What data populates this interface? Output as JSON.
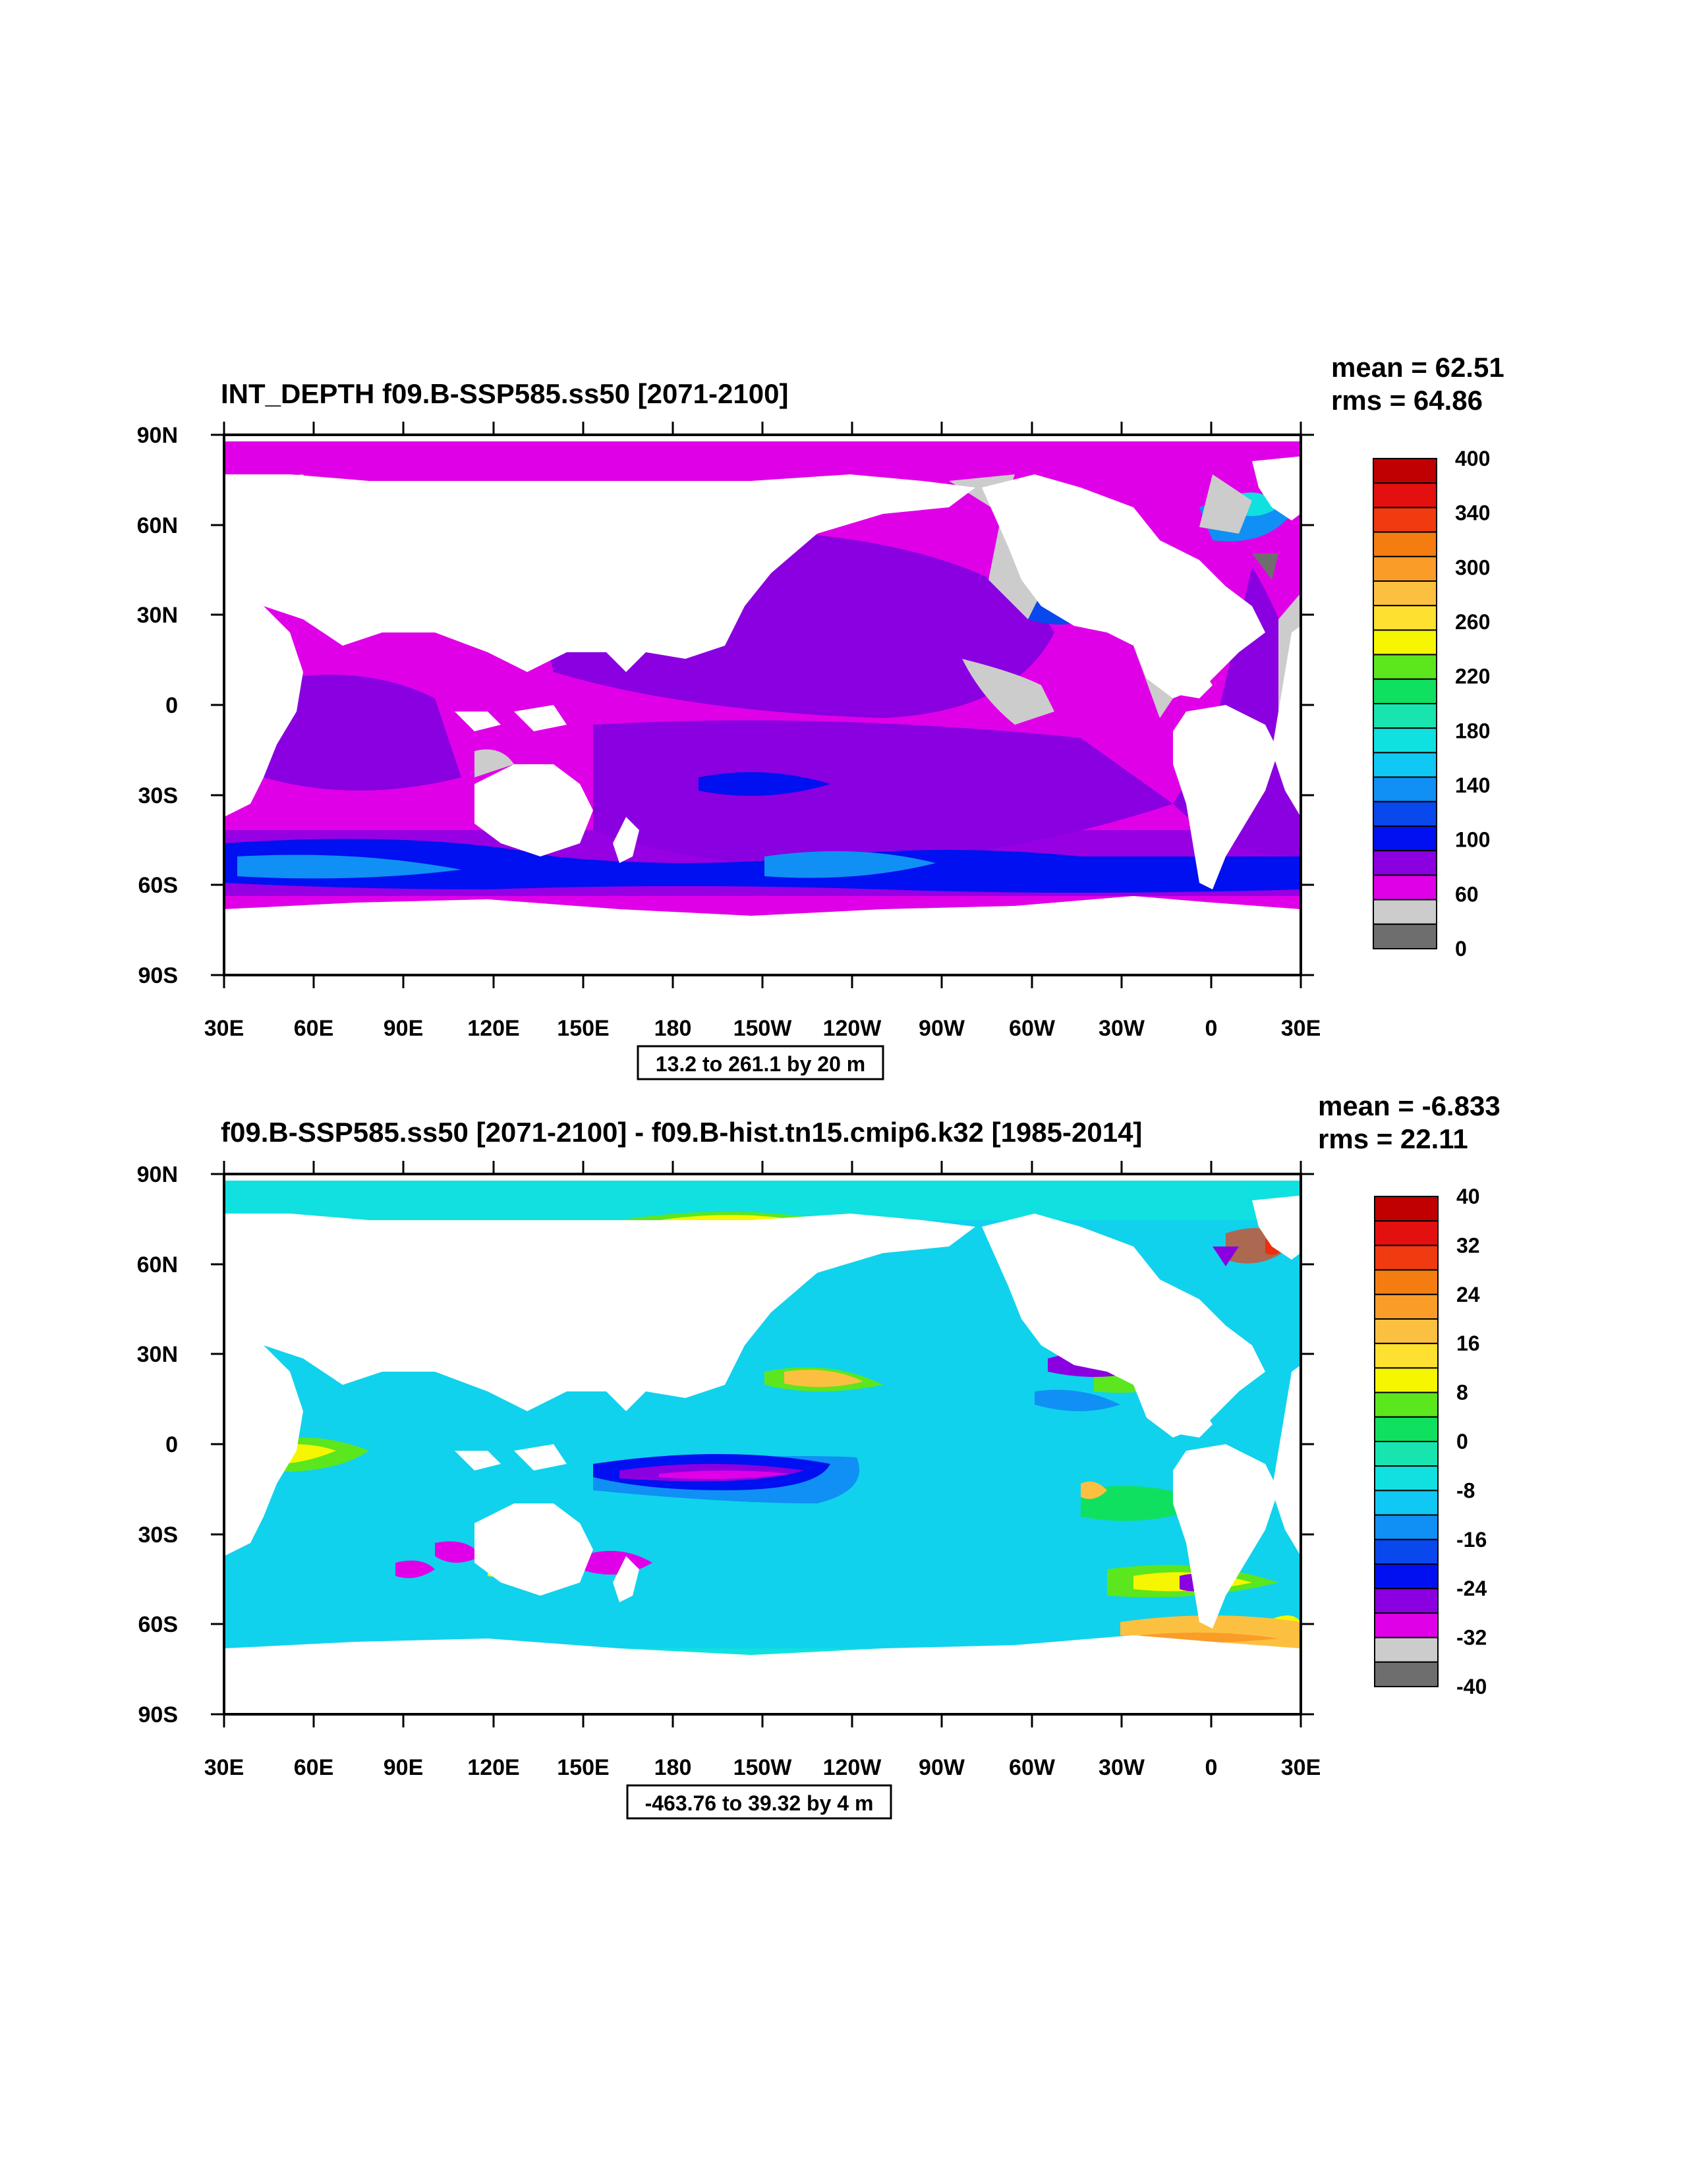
{
  "panels": [
    {
      "title": "INT_DEPTH f09.B-SSP585.ss50 [2071-2100]",
      "stats": {
        "mean": "mean = 62.51",
        "rms": "rms = 64.86"
      },
      "range_note": "13.2 to 261.1 by 20 m",
      "lat_labels": [
        "90N",
        "60N",
        "30N",
        "0",
        "30S",
        "60S",
        "90S"
      ],
      "lon_labels": [
        "30E",
        "60E",
        "90E",
        "120E",
        "150E",
        "180",
        "150W",
        "120W",
        "90W",
        "60W",
        "30W",
        "0",
        "30E"
      ],
      "legend": {
        "colors": [
          "#c00000",
          "#e41010",
          "#f03a10",
          "#f57c10",
          "#fa9c28",
          "#fcc040",
          "#fde030",
          "#f6f600",
          "#5ce61e",
          "#10e060",
          "#18e4b0",
          "#10e0e0",
          "#10c8f4",
          "#1090f4",
          "#0848ec",
          "#0010f0",
          "#8a00e0",
          "#e000e8",
          "#cccccc",
          "#6e6e6e"
        ],
        "labels": [
          "400",
          "340",
          "300",
          "260",
          "220",
          "180",
          "140",
          "100",
          "60",
          "0"
        ]
      }
    },
    {
      "title": "f09.B-SSP585.ss50 [2071-2100] - f09.B-hist.tn15.cmip6.k32 [1985-2014]",
      "stats": {
        "mean": "mean = -6.833",
        "rms": "rms = 22.11"
      },
      "range_note": "-463.76 to 39.32 by 4 m",
      "lat_labels": [
        "90N",
        "60N",
        "30N",
        "0",
        "30S",
        "60S",
        "90S"
      ],
      "lon_labels": [
        "30E",
        "60E",
        "90E",
        "120E",
        "150E",
        "180",
        "150W",
        "120W",
        "90W",
        "60W",
        "30W",
        "0",
        "30E"
      ],
      "legend": {
        "colors": [
          "#c00000",
          "#e41010",
          "#f03a10",
          "#f57c10",
          "#fa9c28",
          "#fcc040",
          "#fde030",
          "#f6f600",
          "#5ce61e",
          "#10e060",
          "#18e4b0",
          "#10e0e0",
          "#10c8f4",
          "#1090f4",
          "#0848ec",
          "#0010f0",
          "#8a00e0",
          "#e000e8",
          "#cccccc",
          "#6e6e6e"
        ],
        "labels": [
          "40",
          "32",
          "24",
          "16",
          "8",
          "0",
          "-8",
          "-16",
          "-24",
          "-32",
          "-40"
        ]
      }
    }
  ]
}
